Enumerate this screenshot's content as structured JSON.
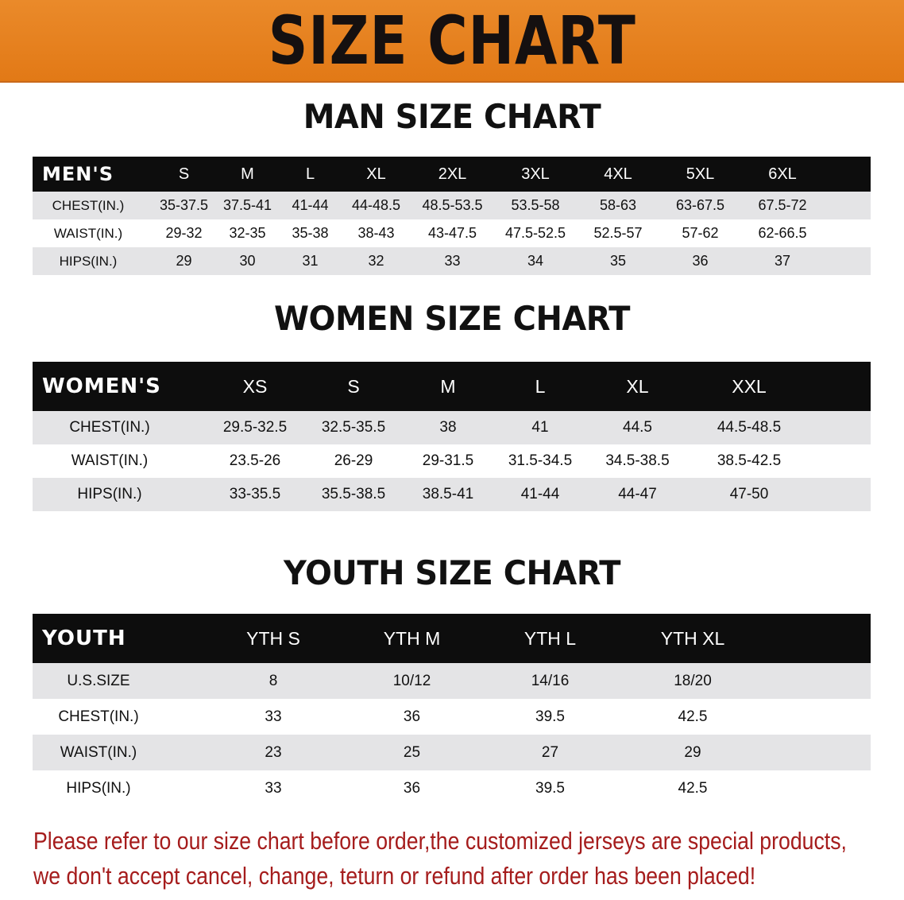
{
  "banner": {
    "title": "SIZE CHART",
    "color": "#e67e1e"
  },
  "men": {
    "title": "MAN SIZE CHART",
    "header": "MEN'S",
    "sizes": [
      "S",
      "M",
      "L",
      "XL",
      "2XL",
      "3XL",
      "4XL",
      "5XL",
      "6XL"
    ],
    "rows": [
      {
        "label": "CHEST(IN.)",
        "values": [
          "35-37.5",
          "37.5-41",
          "41-44",
          "44-48.5",
          "48.5-53.5",
          "53.5-58",
          "58-63",
          "63-67.5",
          "67.5-72"
        ]
      },
      {
        "label": "WAIST(IN.)",
        "values": [
          "29-32",
          "32-35",
          "35-38",
          "38-43",
          "43-47.5",
          "47.5-52.5",
          "52.5-57",
          "57-62",
          "62-66.5"
        ]
      },
      {
        "label": "HIPS(IN.)",
        "values": [
          "29",
          "30",
          "31",
          "32",
          "33",
          "34",
          "35",
          "36",
          "37"
        ]
      }
    ]
  },
  "women": {
    "title": "WOMEN SIZE CHART",
    "header": "WOMEN'S",
    "sizes": [
      "XS",
      "S",
      "M",
      "L",
      "XL",
      "XXL"
    ],
    "rows": [
      {
        "label": "CHEST(IN.)",
        "values": [
          "29.5-32.5",
          "32.5-35.5",
          "38",
          "41",
          "44.5",
          "44.5-48.5"
        ]
      },
      {
        "label": "WAIST(IN.)",
        "values": [
          "23.5-26",
          "26-29",
          "29-31.5",
          "31.5-34.5",
          "34.5-38.5",
          "38.5-42.5"
        ]
      },
      {
        "label": "HIPS(IN.)",
        "values": [
          "33-35.5",
          "35.5-38.5",
          "38.5-41",
          "41-44",
          "44-47",
          "47-50"
        ]
      }
    ]
  },
  "youth": {
    "title": "YOUTH SIZE CHART",
    "header": "YOUTH",
    "sizes": [
      "YTH S",
      "YTH M",
      "YTH L",
      "YTH XL"
    ],
    "rows": [
      {
        "label": "U.S.SIZE",
        "values": [
          "8",
          "10/12",
          "14/16",
          "18/20"
        ]
      },
      {
        "label": "CHEST(IN.)",
        "values": [
          "33",
          "36",
          "39.5",
          "42.5"
        ]
      },
      {
        "label": "WAIST(IN.)",
        "values": [
          "23",
          "25",
          "27",
          "29"
        ]
      },
      {
        "label": "HIPS(IN.)",
        "values": [
          "33",
          "36",
          "39.5",
          "42.5"
        ]
      }
    ]
  },
  "notice": {
    "line1": "Please refer to our size chart before order,the customized jerseys are special products,",
    "line2": "we don't accept cancel, change, teturn or refund after order has been placed!",
    "color": "#a51c1c"
  }
}
